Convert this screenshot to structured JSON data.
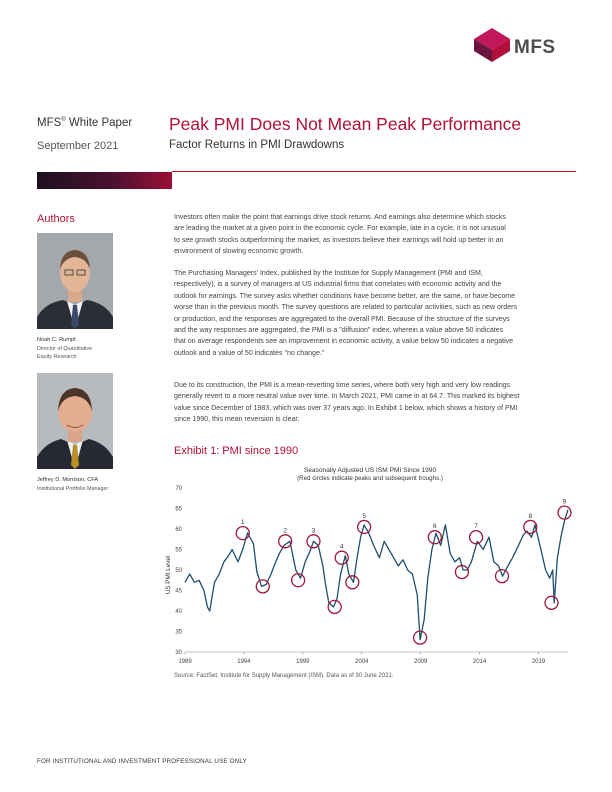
{
  "brand": {
    "name": "MFS",
    "colors": {
      "accent": "#b0103a",
      "line": "#1f4e6e",
      "circle": "#9c1a3e"
    }
  },
  "header": {
    "series_label": "MFS",
    "series_suffix": " White Paper",
    "date": "September 2021",
    "title": "Peak PMI Does Not Mean Peak Performance",
    "subtitle": "Factor Returns in PMI Drawdowns"
  },
  "sidebar": {
    "heading": "Authors",
    "authors": [
      {
        "name": "Noah C. Rumpf",
        "role_line1": "Director of Quantitative",
        "role_line2": "Equity Research"
      },
      {
        "name": "Jeffrey D. Morrison, CFA",
        "role_line1": "Institutional Portfolio Manager",
        "role_line2": ""
      }
    ]
  },
  "body": {
    "para1": [
      "Investors often make the point that earnings drive stock returns. And earnings also determine which stocks",
      "are leading the market at a given point in the economic cycle. For example, late in a cycle, it is not unusual",
      "to see growth stocks outperforming the market, as investors believe their earnings will hold up better in an",
      "environment of slowing economic growth."
    ],
    "para2": [
      "The Purchasing Managers' Index, published by the Institute for Supply Management (PMI and ISM,",
      "respectively), is a survey of managers at US industrial firms that correlates with economic activity and the",
      "outlook for earnings. The survey asks whether conditions have become better, are the same, or have become",
      "worse than in the previous month. The survey questions are related to particular activities, such as new orders",
      "or production, and the responses are aggregated to the overall PMI. Because of the structure of the surveys",
      "and the way responses are aggregated, the PMI is a \"diffusion\" index, wherein a value above 50 indicates",
      "that on average respondents see an improvement in economic activity, a value below 50 indicates a negative",
      "outlook and a value of 50 indicates \"no change.\""
    ],
    "para3": [
      "Due to its construction, the PMI is a mean-reverting time series, where both very high and very low readings",
      "generally revert to a more neutral value over time. In March 2021, PMI came in at 64.7. This marked its highest",
      "value since December of 1983, which was over 37 years ago. In Exhibit 1 below, which shows a history of PMI",
      "since 1990, this mean reversion is clear."
    ]
  },
  "exhibit": {
    "label": "Exhibit 1: PMI since 1990",
    "source": "Source: FactSet, Institute for Supply Management (ISM). Data as of 30 June 2021."
  },
  "footer": {
    "text": "FOR INSTITUTIONAL AND INVESTMENT PROFESSIONAL USE ONLY"
  },
  "chart_data": {
    "type": "line",
    "title": "Seasonally Adjusted US ISM PMI Since 1990",
    "subtitle": "(Red circles indicate peaks and subsequent troughs.)",
    "xlabel": "",
    "ylabel": "US PMI Level",
    "xlim": [
      1989,
      2021.5
    ],
    "ylim": [
      30,
      70
    ],
    "yticks": [
      30,
      35,
      40,
      45,
      50,
      55,
      60,
      65,
      70
    ],
    "xticks": [
      1989,
      1994,
      1999,
      2004,
      2009,
      2014,
      2019
    ],
    "grid": false,
    "legend": "none",
    "series": [
      {
        "x": [
          1989.0,
          1989.4,
          1989.8,
          1990.2,
          1990.6,
          1990.9,
          1991.1,
          1991.5,
          1991.9,
          1992.3,
          1992.7,
          1993.0,
          1993.5,
          1993.9,
          1994.3,
          1994.8,
          1995.1,
          1995.5,
          1995.9,
          1996.3,
          1996.7,
          1997.0,
          1997.4,
          1997.9,
          1998.4,
          1998.8,
          1999.2,
          1999.6,
          1999.9,
          2000.3,
          2000.7,
          2000.9,
          2001.2,
          2001.6,
          2001.9,
          2002.2,
          2002.6,
          2002.9,
          2003.3,
          2003.6,
          2003.9,
          2004.2,
          2004.6,
          2005.0,
          2005.5,
          2005.9,
          2006.3,
          2006.7,
          2007.1,
          2007.5,
          2007.9,
          2008.3,
          2008.7,
          2008.95,
          2009.3,
          2009.6,
          2009.95,
          2010.3,
          2010.7,
          2011.1,
          2011.5,
          2011.9,
          2012.3,
          2012.6,
          2012.95,
          2013.3,
          2013.8,
          2014.3,
          2014.8,
          2015.2,
          2015.6,
          2015.95,
          2016.4,
          2016.8,
          2017.3,
          2017.7,
          2018.0,
          2018.4,
          2018.7,
          2019.2,
          2019.6,
          2019.95,
          2020.2,
          2020.33,
          2020.6,
          2020.9,
          2021.2,
          2021.5
        ],
        "y": [
          47,
          49,
          47,
          47.5,
          45,
          41,
          40,
          47,
          49,
          52,
          53.5,
          55,
          52,
          55,
          59,
          56.5,
          49.5,
          46,
          46.5,
          49,
          52,
          54,
          56,
          57,
          50,
          48,
          52,
          54.5,
          57,
          56,
          51,
          47,
          42,
          41,
          43,
          49,
          53.5,
          49,
          47,
          53,
          58,
          61,
          59,
          56,
          53,
          57,
          55,
          53,
          51,
          52.5,
          50,
          49,
          44,
          33,
          38,
          48,
          55,
          59,
          56,
          61,
          54,
          52,
          53,
          50,
          50,
          52,
          57,
          55,
          58,
          52,
          51,
          48.5,
          51,
          53,
          56,
          58.5,
          59.5,
          58,
          61,
          55,
          50,
          48,
          50,
          42,
          53,
          58,
          62,
          64.7
        ]
      }
    ],
    "annotations": [
      {
        "label": "1",
        "x": 1993.9,
        "y": 59,
        "type": "peak"
      },
      {
        "label": "",
        "x": 1995.6,
        "y": 46,
        "type": "trough"
      },
      {
        "label": "2",
        "x": 1997.5,
        "y": 57,
        "type": "peak"
      },
      {
        "label": "",
        "x": 1998.6,
        "y": 47.5,
        "type": "trough"
      },
      {
        "label": "3",
        "x": 1999.9,
        "y": 57,
        "type": "peak"
      },
      {
        "label": "4",
        "x": 2002.3,
        "y": 53,
        "type": "peak"
      },
      {
        "label": "",
        "x": 2001.7,
        "y": 41,
        "type": "trough"
      },
      {
        "label": "",
        "x": 2003.2,
        "y": 47,
        "type": "trough"
      },
      {
        "label": "5",
        "x": 2004.2,
        "y": 60.5,
        "type": "peak"
      },
      {
        "label": "6",
        "x": 2010.2,
        "y": 58,
        "type": "peak"
      },
      {
        "label": "",
        "x": 2008.95,
        "y": 33.5,
        "type": "trough"
      },
      {
        "label": "7",
        "x": 2013.7,
        "y": 58,
        "type": "peak"
      },
      {
        "label": "",
        "x": 2012.5,
        "y": 49.5,
        "type": "trough"
      },
      {
        "label": "",
        "x": 2015.9,
        "y": 48.5,
        "type": "trough"
      },
      {
        "label": "8",
        "x": 2018.3,
        "y": 60.5,
        "type": "peak"
      },
      {
        "label": "",
        "x": 2020.1,
        "y": 42,
        "type": "trough"
      },
      {
        "label": "9",
        "x": 2021.2,
        "y": 64,
        "type": "peak"
      }
    ]
  }
}
